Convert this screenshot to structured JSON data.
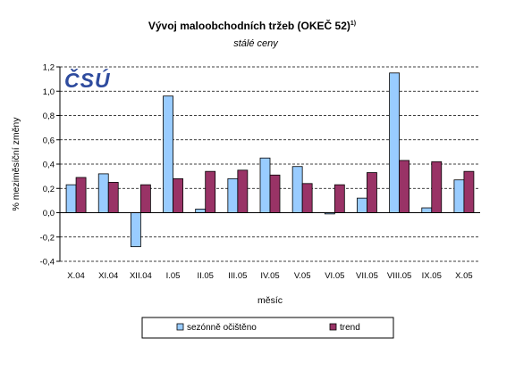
{
  "chart_data": {
    "type": "bar",
    "title": "Vývoj maloobchodních tržeb (OKEČ 52)",
    "title_superscript": "1)",
    "subtitle": "stálé ceny",
    "xlabel": "měsíc",
    "ylabel": "% meziměsíční změny",
    "ylim": [
      -0.4,
      1.2
    ],
    "yticks": [
      "1,2",
      "1,0",
      "0,8",
      "0,6",
      "0,4",
      "0,2",
      "0,0",
      "-0,2",
      "-0,4"
    ],
    "ytick_values": [
      1.2,
      1.0,
      0.8,
      0.6,
      0.4,
      0.2,
      0.0,
      -0.2,
      -0.4
    ],
    "grid": "horizontal dashed",
    "legend_position": "bottom",
    "categories": [
      "X.04",
      "XI.04",
      "XII.04",
      "I.05",
      "II.05",
      "III.05",
      "IV.05",
      "V.05",
      "VI.05",
      "VII.05",
      "VIII.05",
      "IX.05",
      "X.05"
    ],
    "series": [
      {
        "name": "sezónně očištěno",
        "color": "#99CCFF",
        "values": [
          0.23,
          0.32,
          -0.28,
          0.96,
          0.03,
          0.28,
          0.45,
          0.38,
          -0.01,
          0.12,
          1.15,
          0.04,
          0.27
        ]
      },
      {
        "name": "trend",
        "color": "#993366",
        "values": [
          0.29,
          0.25,
          0.23,
          0.28,
          0.34,
          0.35,
          0.31,
          0.24,
          0.23,
          0.33,
          0.43,
          0.42,
          0.34
        ]
      }
    ],
    "logo_text": "ČSÚ",
    "logo_color": "#2E4B9E"
  }
}
